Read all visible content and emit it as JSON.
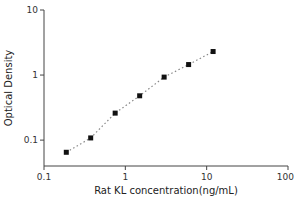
{
  "chart_data": {
    "type": "line",
    "xlabel": "Rat KL concentration(ng/mL)",
    "ylabel": "Optical Density",
    "x": [
      0.188,
      0.375,
      0.75,
      1.5,
      3.0,
      6.0,
      12.0
    ],
    "values": [
      0.065,
      0.108,
      0.26,
      0.48,
      0.93,
      1.45,
      2.3
    ],
    "xlim": [
      0.1,
      100
    ],
    "ylim": [
      0.04,
      10
    ],
    "xticks": [
      0.1,
      1,
      10,
      100
    ],
    "yticks": [
      0.1,
      1,
      10
    ],
    "log": true,
    "grid": false,
    "color": "#888888",
    "colors": [
      "#111111",
      "#111111",
      "#111111",
      "#111111",
      "#111111",
      "#111111",
      "#111111"
    ],
    "marker": "square",
    "line_style": "dotted"
  }
}
